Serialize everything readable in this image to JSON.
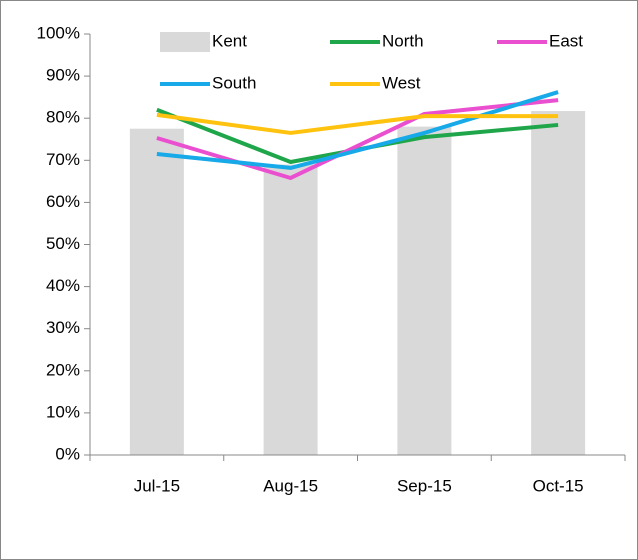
{
  "chart_data": {
    "type": "combo",
    "categories": [
      "Jul-15",
      "Aug-15",
      "Sep-15",
      "Oct-15"
    ],
    "series": [
      {
        "name": "Kent",
        "type": "bar",
        "color": "#d9d9d9",
        "values": [
          77.5,
          69,
          78,
          81.7
        ]
      },
      {
        "name": "North",
        "type": "line",
        "color": "#1fa64a",
        "values": [
          82,
          69.6,
          75.5,
          78.4
        ]
      },
      {
        "name": "East",
        "type": "line",
        "color": "#ea4fcf",
        "values": [
          75.3,
          65.8,
          81,
          84.3
        ]
      },
      {
        "name": "South",
        "type": "line",
        "color": "#17a9e8",
        "values": [
          71.5,
          68.2,
          76.5,
          86.2
        ]
      },
      {
        "name": "West",
        "type": "line",
        "color": "#ffc20e",
        "values": [
          80.8,
          76.5,
          80.5,
          80.5
        ]
      }
    ],
    "ylim": [
      0,
      100
    ],
    "yticks": [
      {
        "value": 0,
        "label": "0%"
      },
      {
        "value": 10,
        "label": "10%"
      },
      {
        "value": 20,
        "label": "20%"
      },
      {
        "value": 30,
        "label": "30%"
      },
      {
        "value": 40,
        "label": "40%"
      },
      {
        "value": 50,
        "label": "50%"
      },
      {
        "value": 60,
        "label": "60%"
      },
      {
        "value": 70,
        "label": "70%"
      },
      {
        "value": 80,
        "label": "80%"
      },
      {
        "value": 90,
        "label": "90%"
      },
      {
        "value": 100,
        "label": "100%"
      }
    ],
    "grid": false,
    "legend": "top"
  }
}
